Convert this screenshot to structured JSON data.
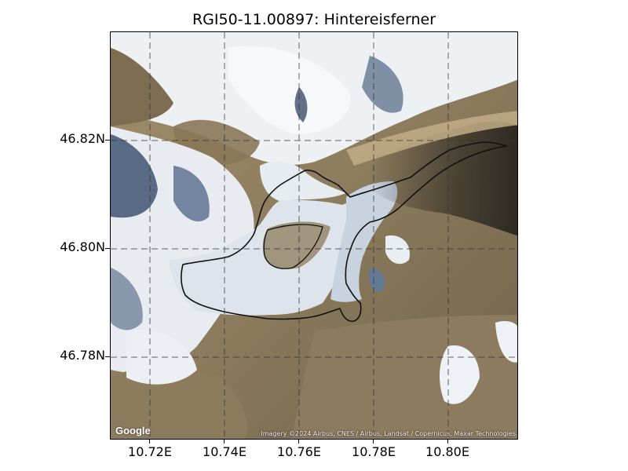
{
  "title": "RGI50-11.00897: Hintereisferner",
  "map": {
    "y_ticks": [
      "46.82N",
      "46.80N",
      "46.78N"
    ],
    "x_ticks": [
      "10.72E",
      "10.74E",
      "10.76E",
      "10.78E",
      "10.80E"
    ],
    "attribution": "Imagery ©2024 Airbus, CNES / Airbus, Landsat / Copernicus, Maxar Technologies",
    "logo": "Google",
    "colors": {
      "rock": "#8f7f62",
      "snow": "#eef2f6",
      "shadow": "#3b4b63",
      "ice": "#dfe6ee",
      "outline": "#111111",
      "grid": "#333333"
    },
    "grid": "dashed"
  }
}
